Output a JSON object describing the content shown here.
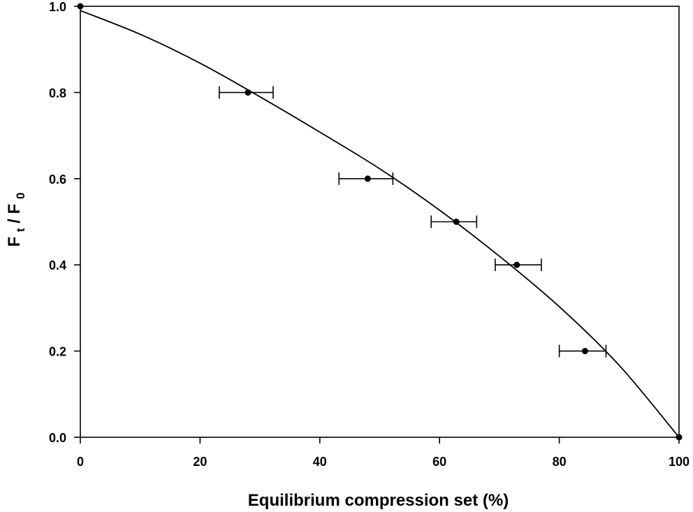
{
  "chart_data": {
    "type": "scatter",
    "title": "",
    "xlabel": "Equilibrium compression set (%)",
    "ylabel": {
      "base1": "F",
      "sub1": "t",
      "sep": "/",
      "base2": "F",
      "sub2": "0"
    },
    "xlim": [
      0,
      100
    ],
    "ylim": [
      0.0,
      1.0
    ],
    "x_ticks": [
      0,
      20,
      40,
      60,
      80,
      100
    ],
    "x_tick_labels": [
      "0",
      "20",
      "40",
      "60",
      "80",
      "100"
    ],
    "y_ticks": [
      0.0,
      0.2,
      0.4,
      0.6,
      0.8,
      1.0
    ],
    "y_tick_labels": [
      "0.0",
      "0.2",
      "0.4",
      "0.6",
      "0.8",
      "1.0"
    ],
    "grid": false,
    "legend": "none",
    "series": [
      {
        "kind": "points",
        "points": [
          {
            "x": 0,
            "y": 1.0
          },
          {
            "x": 28,
            "y": 0.8,
            "xerr_low": 23.2,
            "xerr_high": 32.2
          },
          {
            "x": 48,
            "y": 0.6,
            "xerr_low": 43.2,
            "xerr_high": 52.2
          },
          {
            "x": 62.8,
            "y": 0.5,
            "xerr_low": 58.6,
            "xerr_high": 66.2
          },
          {
            "x": 72.9,
            "y": 0.4,
            "xerr_low": 69.3,
            "xerr_high": 77.0
          },
          {
            "x": 84.3,
            "y": 0.2,
            "xerr_low": 80.0,
            "xerr_high": 87.8
          },
          {
            "x": 100,
            "y": 0.0
          }
        ]
      },
      {
        "kind": "fit-curve",
        "x": [
          0,
          10,
          20,
          30,
          40,
          50,
          60,
          70,
          80,
          90,
          100
        ],
        "y": [
          0.99,
          0.935,
          0.868,
          0.79,
          0.708,
          0.623,
          0.527,
          0.42,
          0.303,
          0.167,
          0.0
        ]
      }
    ]
  }
}
